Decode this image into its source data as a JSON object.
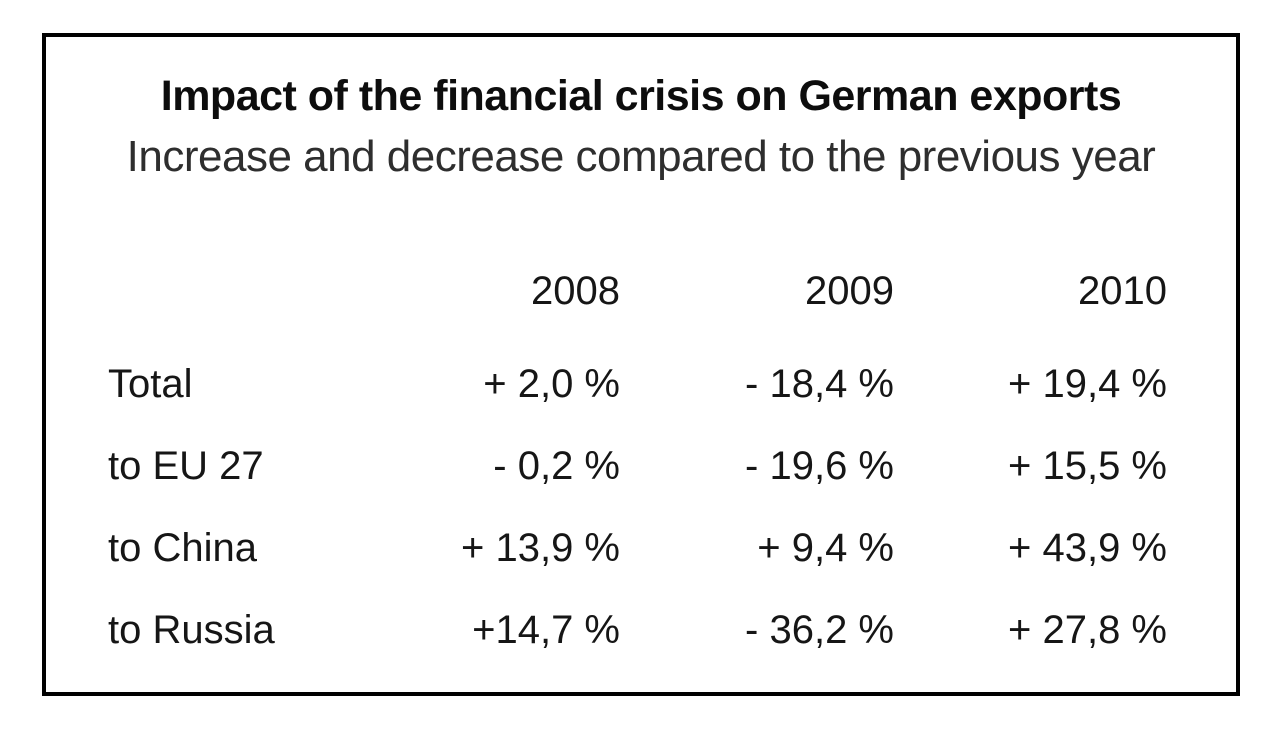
{
  "figure": {
    "title": "Impact of the financial crisis on German exports",
    "subtitle": "Increase and decrease compared to the previous year",
    "border_color": "#000000",
    "background_color": "#ffffff",
    "text_color": "#161616"
  },
  "chart_data": {
    "type": "table",
    "title": "Impact of the financial crisis on German exports",
    "subtitle": "Increase and decrease compared to the previous year",
    "columns": [
      "",
      "2008",
      "2009",
      "2010"
    ],
    "rows": [
      {
        "label": "Total",
        "values": [
          "+ 2,0 %",
          "- 18,4 %",
          "+ 19,4 %"
        ]
      },
      {
        "label": "to EU 27",
        "values": [
          "- 0,2 %",
          "- 19,6 %",
          "+ 15,5 %"
        ]
      },
      {
        "label": "to China",
        "values": [
          "+ 13,9 %",
          "+ 9,4 %",
          "+ 43,9 %"
        ]
      },
      {
        "label": "to Russia",
        "values": [
          "+14,7 %",
          "- 36,2 %",
          "+ 27,8 %"
        ]
      }
    ],
    "numeric": {
      "categories": [
        "2008",
        "2009",
        "2010"
      ],
      "unit": "%",
      "decimal_separator": ",",
      "series": [
        {
          "name": "Total",
          "values": [
            2.0,
            -18.4,
            19.4
          ]
        },
        {
          "name": "to EU 27",
          "values": [
            -0.2,
            -19.6,
            15.5
          ]
        },
        {
          "name": "to China",
          "values": [
            13.9,
            9.4,
            43.9
          ]
        },
        {
          "name": "to Russia",
          "values": [
            14.7,
            -36.2,
            27.8
          ]
        }
      ]
    },
    "layout": {
      "grid": false,
      "legend": false,
      "value_alignment": "right"
    }
  }
}
